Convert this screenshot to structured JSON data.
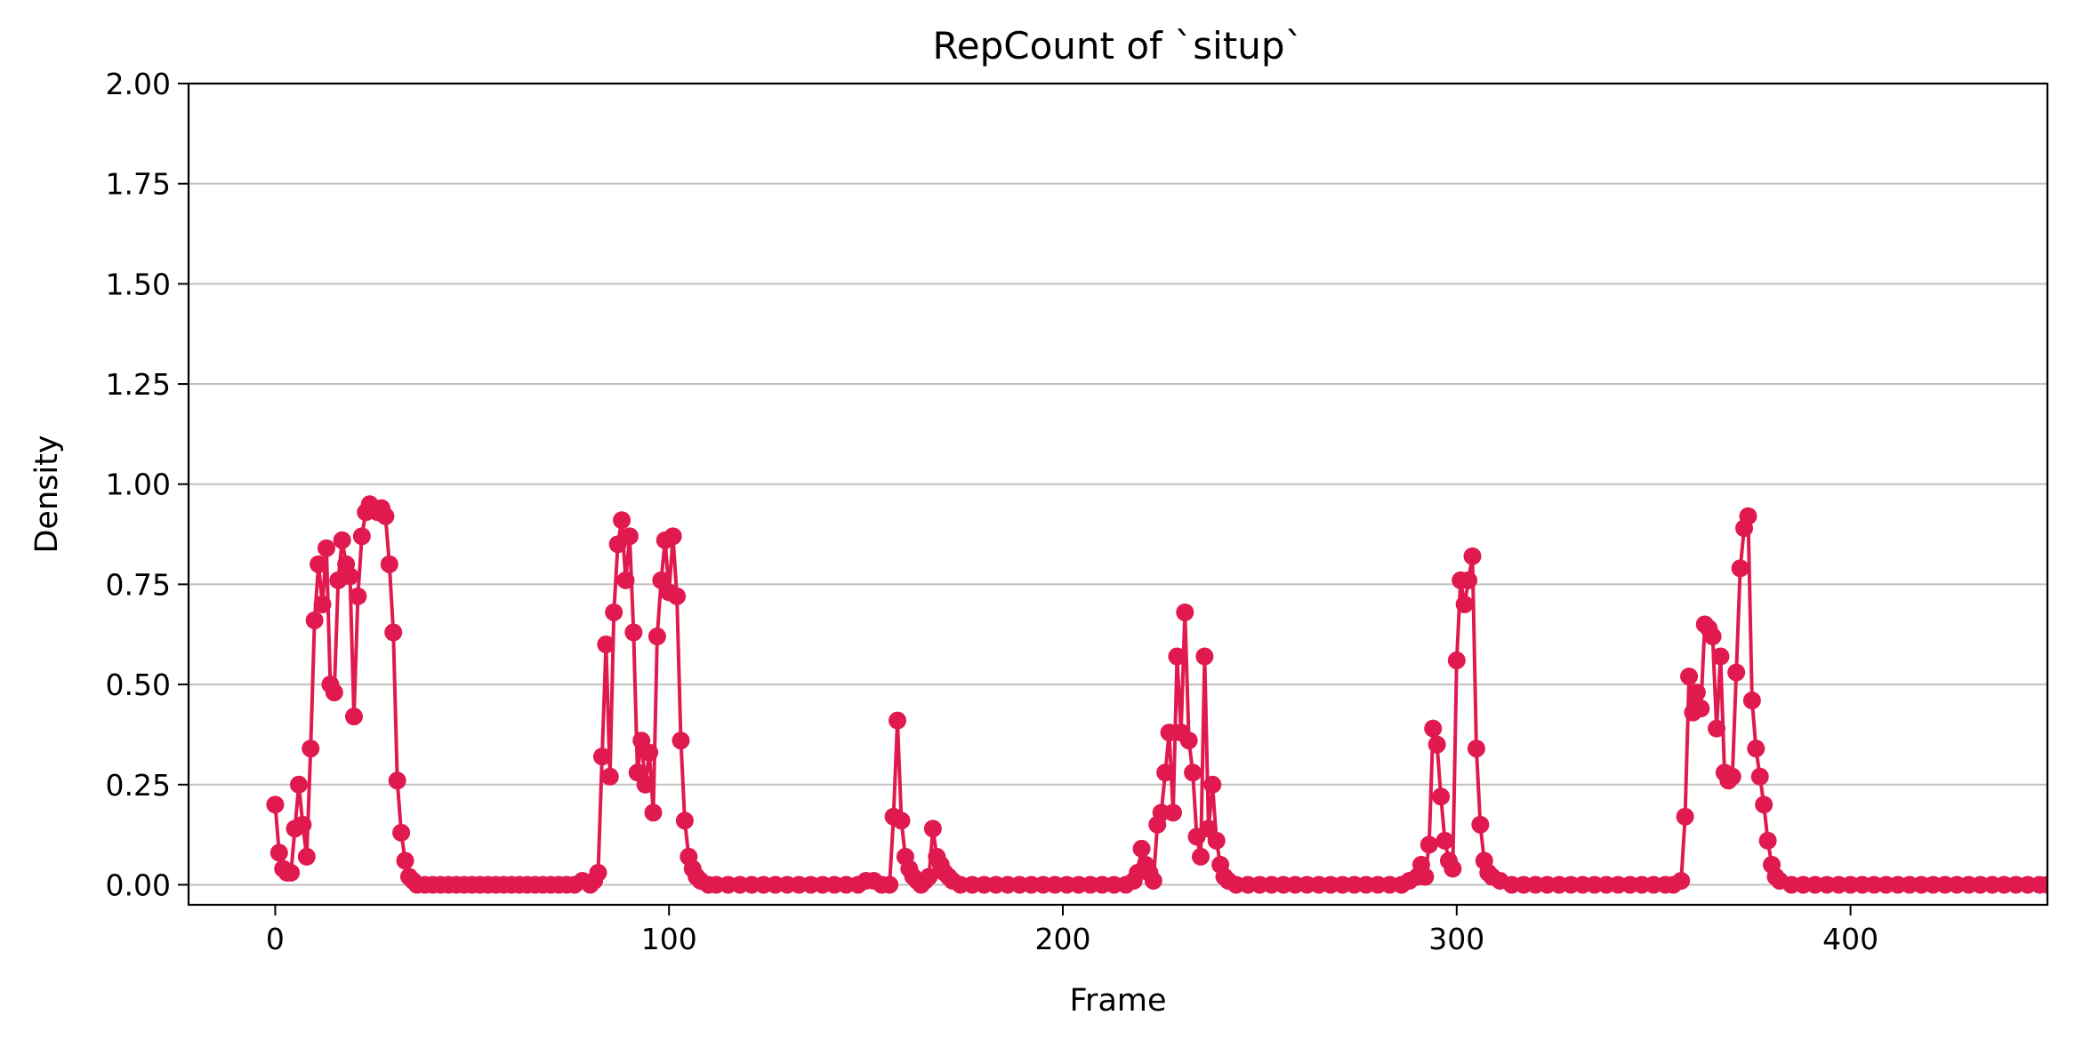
{
  "chart_data": {
    "type": "line",
    "title": "RepCount of `situp`",
    "xlabel": "Frame",
    "ylabel": "Density",
    "xlim": [
      -22,
      450
    ],
    "ylim": [
      -0.05,
      2.0
    ],
    "x_ticks": [
      0,
      100,
      200,
      300,
      400
    ],
    "x_tick_labels": [
      "0",
      "100",
      "200",
      "300",
      "400"
    ],
    "y_ticks": [
      0,
      0.25,
      0.5,
      0.75,
      1.0,
      1.25,
      1.5,
      1.75,
      2.0
    ],
    "y_tick_labels": [
      "0.00",
      "0.25",
      "0.50",
      "0.75",
      "1.00",
      "1.25",
      "1.50",
      "1.75",
      "2.00"
    ],
    "grid": "horizontal",
    "marker": "circle",
    "series": [
      {
        "color": "#e0194f",
        "points": [
          [
            0,
            0.2
          ],
          [
            1,
            0.08
          ],
          [
            2,
            0.04
          ],
          [
            3,
            0.03
          ],
          [
            4,
            0.03
          ],
          [
            5,
            0.14
          ],
          [
            6,
            0.25
          ],
          [
            7,
            0.15
          ],
          [
            8,
            0.07
          ],
          [
            9,
            0.34
          ],
          [
            10,
            0.66
          ],
          [
            11,
            0.8
          ],
          [
            12,
            0.7
          ],
          [
            13,
            0.84
          ],
          [
            14,
            0.5
          ],
          [
            15,
            0.48
          ],
          [
            16,
            0.76
          ],
          [
            17,
            0.86
          ],
          [
            18,
            0.8
          ],
          [
            19,
            0.77
          ],
          [
            20,
            0.42
          ],
          [
            21,
            0.72
          ],
          [
            22,
            0.87
          ],
          [
            23,
            0.93
          ],
          [
            24,
            0.95
          ],
          [
            25,
            0.94
          ],
          [
            26,
            0.93
          ],
          [
            27,
            0.94
          ],
          [
            28,
            0.92
          ],
          [
            29,
            0.8
          ],
          [
            30,
            0.63
          ],
          [
            31,
            0.26
          ],
          [
            32,
            0.13
          ],
          [
            33,
            0.06
          ],
          [
            34,
            0.02
          ],
          [
            35,
            0.01
          ],
          [
            36,
            0.0
          ],
          [
            38,
            0.0
          ],
          [
            40,
            0.0
          ],
          [
            42,
            0.0
          ],
          [
            44,
            0.0
          ],
          [
            46,
            0.0
          ],
          [
            48,
            0.0
          ],
          [
            50,
            0.0
          ],
          [
            52,
            0.0
          ],
          [
            54,
            0.0
          ],
          [
            56,
            0.0
          ],
          [
            58,
            0.0
          ],
          [
            60,
            0.0
          ],
          [
            62,
            0.0
          ],
          [
            64,
            0.0
          ],
          [
            66,
            0.0
          ],
          [
            68,
            0.0
          ],
          [
            70,
            0.0
          ],
          [
            72,
            0.0
          ],
          [
            74,
            0.0
          ],
          [
            76,
            0.0
          ],
          [
            78,
            0.01
          ],
          [
            80,
            0.0
          ],
          [
            81,
            0.01
          ],
          [
            82,
            0.03
          ],
          [
            83,
            0.32
          ],
          [
            84,
            0.6
          ],
          [
            85,
            0.27
          ],
          [
            86,
            0.68
          ],
          [
            87,
            0.85
          ],
          [
            88,
            0.91
          ],
          [
            89,
            0.76
          ],
          [
            90,
            0.87
          ],
          [
            91,
            0.63
          ],
          [
            92,
            0.28
          ],
          [
            93,
            0.36
          ],
          [
            94,
            0.25
          ],
          [
            95,
            0.33
          ],
          [
            96,
            0.18
          ],
          [
            97,
            0.62
          ],
          [
            98,
            0.76
          ],
          [
            99,
            0.86
          ],
          [
            100,
            0.73
          ],
          [
            101,
            0.87
          ],
          [
            102,
            0.72
          ],
          [
            103,
            0.36
          ],
          [
            104,
            0.16
          ],
          [
            105,
            0.07
          ],
          [
            106,
            0.04
          ],
          [
            107,
            0.02
          ],
          [
            108,
            0.01
          ],
          [
            110,
            0.0
          ],
          [
            112,
            0.0
          ],
          [
            115,
            0.0
          ],
          [
            118,
            0.0
          ],
          [
            121,
            0.0
          ],
          [
            124,
            0.0
          ],
          [
            127,
            0.0
          ],
          [
            130,
            0.0
          ],
          [
            133,
            0.0
          ],
          [
            136,
            0.0
          ],
          [
            139,
            0.0
          ],
          [
            142,
            0.0
          ],
          [
            145,
            0.0
          ],
          [
            148,
            0.0
          ],
          [
            150,
            0.01
          ],
          [
            152,
            0.01
          ],
          [
            154,
            0.0
          ],
          [
            156,
            0.0
          ],
          [
            157,
            0.17
          ],
          [
            158,
            0.41
          ],
          [
            159,
            0.16
          ],
          [
            160,
            0.07
          ],
          [
            161,
            0.04
          ],
          [
            162,
            0.02
          ],
          [
            163,
            0.01
          ],
          [
            164,
            0.0
          ],
          [
            165,
            0.01
          ],
          [
            166,
            0.02
          ],
          [
            167,
            0.14
          ],
          [
            168,
            0.07
          ],
          [
            169,
            0.05
          ],
          [
            170,
            0.03
          ],
          [
            171,
            0.02
          ],
          [
            172,
            0.01
          ],
          [
            174,
            0.0
          ],
          [
            177,
            0.0
          ],
          [
            180,
            0.0
          ],
          [
            183,
            0.0
          ],
          [
            186,
            0.0
          ],
          [
            189,
            0.0
          ],
          [
            192,
            0.0
          ],
          [
            195,
            0.0
          ],
          [
            198,
            0.0
          ],
          [
            201,
            0.0
          ],
          [
            204,
            0.0
          ],
          [
            207,
            0.0
          ],
          [
            210,
            0.0
          ],
          [
            213,
            0.0
          ],
          [
            216,
            0.0
          ],
          [
            218,
            0.01
          ],
          [
            219,
            0.03
          ],
          [
            220,
            0.09
          ],
          [
            221,
            0.05
          ],
          [
            222,
            0.03
          ],
          [
            223,
            0.01
          ],
          [
            224,
            0.15
          ],
          [
            225,
            0.18
          ],
          [
            226,
            0.28
          ],
          [
            227,
            0.38
          ],
          [
            228,
            0.18
          ],
          [
            229,
            0.57
          ],
          [
            230,
            0.38
          ],
          [
            231,
            0.68
          ],
          [
            232,
            0.36
          ],
          [
            233,
            0.28
          ],
          [
            234,
            0.12
          ],
          [
            235,
            0.07
          ],
          [
            236,
            0.57
          ],
          [
            237,
            0.14
          ],
          [
            238,
            0.25
          ],
          [
            239,
            0.11
          ],
          [
            240,
            0.05
          ],
          [
            241,
            0.02
          ],
          [
            242,
            0.01
          ],
          [
            244,
            0.0
          ],
          [
            247,
            0.0
          ],
          [
            250,
            0.0
          ],
          [
            253,
            0.0
          ],
          [
            256,
            0.0
          ],
          [
            259,
            0.0
          ],
          [
            262,
            0.0
          ],
          [
            265,
            0.0
          ],
          [
            268,
            0.0
          ],
          [
            271,
            0.0
          ],
          [
            274,
            0.0
          ],
          [
            277,
            0.0
          ],
          [
            280,
            0.0
          ],
          [
            283,
            0.0
          ],
          [
            286,
            0.0
          ],
          [
            288,
            0.01
          ],
          [
            290,
            0.02
          ],
          [
            291,
            0.05
          ],
          [
            292,
            0.02
          ],
          [
            293,
            0.1
          ],
          [
            294,
            0.39
          ],
          [
            295,
            0.35
          ],
          [
            296,
            0.22
          ],
          [
            297,
            0.11
          ],
          [
            298,
            0.06
          ],
          [
            299,
            0.04
          ],
          [
            300,
            0.56
          ],
          [
            301,
            0.76
          ],
          [
            302,
            0.7
          ],
          [
            303,
            0.76
          ],
          [
            304,
            0.82
          ],
          [
            305,
            0.34
          ],
          [
            306,
            0.15
          ],
          [
            307,
            0.06
          ],
          [
            308,
            0.03
          ],
          [
            309,
            0.02
          ],
          [
            311,
            0.01
          ],
          [
            314,
            0.0
          ],
          [
            317,
            0.0
          ],
          [
            320,
            0.0
          ],
          [
            323,
            0.0
          ],
          [
            326,
            0.0
          ],
          [
            329,
            0.0
          ],
          [
            332,
            0.0
          ],
          [
            335,
            0.0
          ],
          [
            338,
            0.0
          ],
          [
            341,
            0.0
          ],
          [
            344,
            0.0
          ],
          [
            347,
            0.0
          ],
          [
            350,
            0.0
          ],
          [
            353,
            0.0
          ],
          [
            355,
            0.0
          ],
          [
            357,
            0.01
          ],
          [
            358,
            0.17
          ],
          [
            359,
            0.52
          ],
          [
            360,
            0.43
          ],
          [
            361,
            0.48
          ],
          [
            362,
            0.44
          ],
          [
            363,
            0.65
          ],
          [
            364,
            0.64
          ],
          [
            365,
            0.62
          ],
          [
            366,
            0.39
          ],
          [
            367,
            0.57
          ],
          [
            368,
            0.28
          ],
          [
            369,
            0.26
          ],
          [
            370,
            0.27
          ],
          [
            371,
            0.53
          ],
          [
            372,
            0.79
          ],
          [
            373,
            0.89
          ],
          [
            374,
            0.92
          ],
          [
            375,
            0.46
          ],
          [
            376,
            0.34
          ],
          [
            377,
            0.27
          ],
          [
            378,
            0.2
          ],
          [
            379,
            0.11
          ],
          [
            380,
            0.05
          ],
          [
            381,
            0.02
          ],
          [
            382,
            0.01
          ],
          [
            385,
            0.0
          ],
          [
            388,
            0.0
          ],
          [
            391,
            0.0
          ],
          [
            394,
            0.0
          ],
          [
            397,
            0.0
          ],
          [
            400,
            0.0
          ],
          [
            403,
            0.0
          ],
          [
            406,
            0.0
          ],
          [
            409,
            0.0
          ],
          [
            412,
            0.0
          ],
          [
            415,
            0.0
          ],
          [
            418,
            0.0
          ],
          [
            421,
            0.0
          ],
          [
            424,
            0.0
          ],
          [
            427,
            0.0
          ],
          [
            430,
            0.0
          ],
          [
            433,
            0.0
          ],
          [
            436,
            0.0
          ],
          [
            439,
            0.0
          ],
          [
            442,
            0.0
          ],
          [
            445,
            0.0
          ],
          [
            448,
            0.0
          ],
          [
            450,
            0.0
          ]
        ]
      }
    ]
  }
}
